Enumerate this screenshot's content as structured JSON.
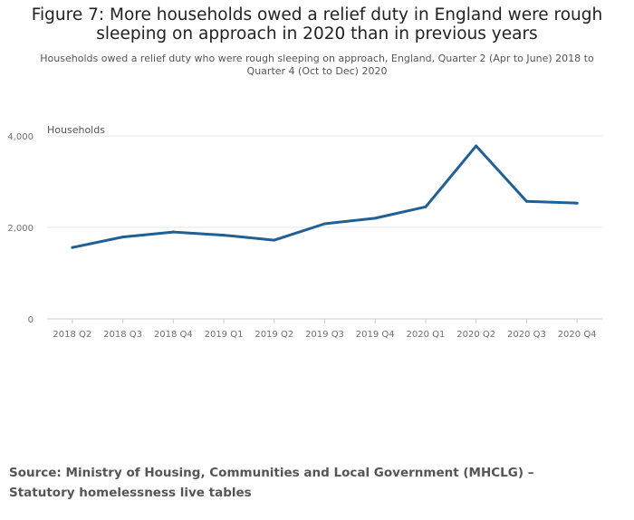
{
  "chart_data": {
    "type": "line",
    "title": "Figure 7: More households owed a relief duty in England were rough sleeping on approach in 2020 than in previous years",
    "subtitle": "Households owed a relief duty who were rough sleeping on approach, England, Quarter 2 (Apr to June) 2018 to Quarter 4 (Oct to Dec) 2020",
    "xlabel": "",
    "ylabel": "Households",
    "categories": [
      "2018 Q2",
      "2018 Q3",
      "2018 Q4",
      "2019 Q1",
      "2019 Q2",
      "2019 Q3",
      "2019 Q4",
      "2020 Q1",
      "2020 Q2",
      "2020 Q3",
      "2020 Q4"
    ],
    "series": [
      {
        "name": "Households",
        "values": [
          1560,
          1790,
          1900,
          1830,
          1720,
          2080,
          2200,
          2450,
          3780,
          2570,
          2530
        ]
      }
    ],
    "ylim": [
      0,
      4000
    ],
    "yticks": [
      0,
      2000,
      4000
    ],
    "ytick_labels": [
      "0",
      "2,000",
      "4,000"
    ],
    "grid": true,
    "line_color": "#206095"
  },
  "footer": {
    "source": "Source: Ministry of Housing, Communities and Local Government (MHCLG) – Statutory homelessness live tables"
  }
}
